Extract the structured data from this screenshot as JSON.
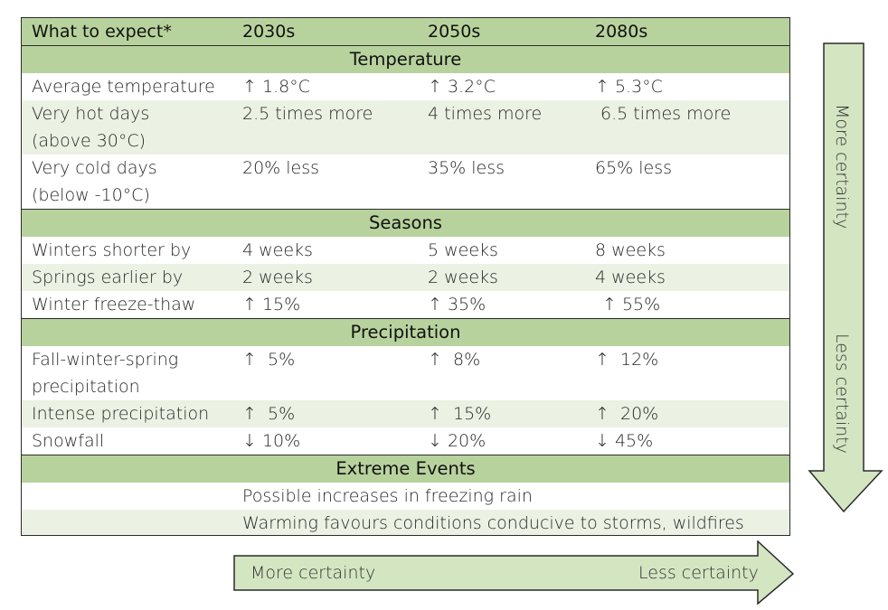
{
  "header": {
    "label": "What to expect*",
    "col1": "2030s",
    "col2": "2050s",
    "col3": "2080s"
  },
  "sections": {
    "temperature": {
      "title": "Temperature",
      "rows": [
        {
          "label": "Average temperature",
          "v1": "↑ 1.8°C",
          "v2": "↑ 3.2°C",
          "v3": "↑ 5.3°C"
        },
        {
          "label_line1": "Very hot days",
          "label_line2": "(above 30°C)",
          "v1": "2.5 times more",
          "v2": "4 times more",
          "v3": "6.5 times more"
        },
        {
          "label_line1": "Very cold days",
          "label_line2": "(below -10°C)",
          "v1": "20% less",
          "v2": "35% less",
          "v3": "65% less"
        }
      ]
    },
    "seasons": {
      "title": "Seasons",
      "rows": [
        {
          "label": "Winters shorter by",
          "v1": "4 weeks",
          "v2": "5 weeks",
          "v3": "8 weeks"
        },
        {
          "label": "Springs earlier by",
          "v1": "2 weeks",
          "v2": "2 weeks",
          "v3": "4 weeks"
        },
        {
          "label": "Winter freeze-thaw",
          "v1": "↑ 15%",
          "v2": "↑ 35%",
          "v3": "↑ 55%"
        }
      ]
    },
    "precipitation": {
      "title": "Precipitation",
      "rows": [
        {
          "label_line1": "Fall-winter-spring",
          "label_line2": "precipitation",
          "v1": "↑  5%",
          "v2": "↑  8%",
          "v3": "↑  12%"
        },
        {
          "label": "Intense precipitation",
          "v1": "↑  5%",
          "v2": "↑  15%",
          "v3": "↑  20%"
        },
        {
          "label": "Snowfall",
          "v1": "↓ 10%",
          "v2": "↓ 20%",
          "v3": "↓ 45%"
        }
      ]
    },
    "extreme": {
      "title": "Extreme Events",
      "rows": [
        {
          "text": "Possible increases in freezing rain"
        },
        {
          "text": "Warming favours conditions conducive to storms, wildfires"
        }
      ]
    }
  },
  "arrows": {
    "vertical": {
      "top_label": "More certainty",
      "bottom_label": "Less certainty"
    },
    "horizontal": {
      "left_label": "More certainty",
      "right_label": "Less certainty"
    }
  },
  "colors": {
    "header_green": "#b8d29d",
    "band_light": "#ebf2e4",
    "arrow_fill": "#d4e5c2",
    "border": "#2b2b2b"
  }
}
